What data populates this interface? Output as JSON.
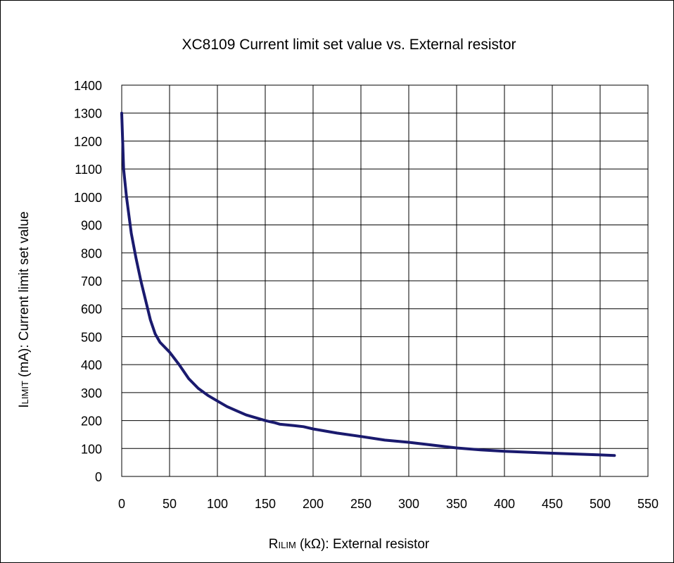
{
  "chart_data": {
    "type": "line",
    "title": "XC8109  Current  limit  set  value  vs.  External  resistor",
    "xlabel": {
      "main": "R",
      "sub": "ILIM",
      "rest": " (kΩ): External resistor"
    },
    "ylabel": {
      "main": "I",
      "sub": "LIMIT",
      "rest": " (mA): Current limit set value"
    },
    "xlim": [
      0,
      550
    ],
    "ylim": [
      0,
      1400
    ],
    "xticks": [
      0,
      50,
      100,
      150,
      200,
      250,
      300,
      350,
      400,
      450,
      500,
      550
    ],
    "yticks": [
      0,
      100,
      200,
      300,
      400,
      500,
      600,
      700,
      800,
      900,
      1000,
      1100,
      1200,
      1300,
      1400
    ],
    "grid": true,
    "line_color": "#1a1a6e",
    "series": [
      {
        "x": [
          0,
          2,
          5,
          10,
          15,
          20,
          25,
          30,
          35,
          40,
          50,
          60,
          70,
          80,
          90,
          100,
          110,
          120,
          130,
          140,
          150,
          160,
          165,
          180,
          190,
          200,
          225,
          250,
          275,
          300,
          325,
          350,
          375,
          400,
          450,
          500,
          515
        ],
        "y": [
          1300,
          1100,
          1000,
          870,
          780,
          700,
          630,
          560,
          510,
          480,
          445,
          400,
          350,
          315,
          290,
          270,
          250,
          235,
          220,
          210,
          200,
          192,
          187,
          182,
          178,
          170,
          155,
          143,
          130,
          122,
          112,
          102,
          95,
          90,
          83,
          77,
          75
        ]
      }
    ]
  }
}
